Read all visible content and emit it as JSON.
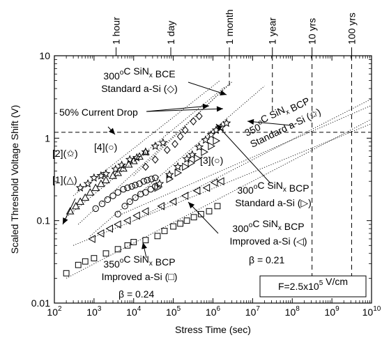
{
  "chart_data": {
    "type": "scatter",
    "xscale": "log",
    "yscale": "log",
    "xlim": [
      100,
      10000000000
    ],
    "ylim": [
      0.01,
      10
    ],
    "xlabel": "Stress Time (sec)",
    "ylabel": "Scaled Threshold Voltage Shift (V)",
    "grid": false,
    "x_ticks": [
      {
        "v": 100,
        "base": "10",
        "exp": "2"
      },
      {
        "v": 1000,
        "base": "10",
        "exp": "3"
      },
      {
        "v": 10000,
        "base": "10",
        "exp": "4"
      },
      {
        "v": 100000,
        "base": "10",
        "exp": "5"
      },
      {
        "v": 1000000,
        "base": "10",
        "exp": "6"
      },
      {
        "v": 10000000,
        "base": "10",
        "exp": "7"
      },
      {
        "v": 100000000,
        "base": "10",
        "exp": "8"
      },
      {
        "v": 1000000000,
        "base": "10",
        "exp": "9"
      },
      {
        "v": 10000000000,
        "base": "10",
        "exp": "10"
      }
    ],
    "y_ticks": [
      {
        "v": 0.01,
        "label": "0.01"
      },
      {
        "v": 0.1,
        "label": "0.1"
      },
      {
        "v": 1,
        "label": "1"
      },
      {
        "v": 10,
        "label": "10"
      }
    ],
    "time_markers": [
      {
        "label": "1 hour",
        "x": 3600,
        "line": false
      },
      {
        "label": "1 day",
        "x": 86400,
        "line": false
      },
      {
        "label": "1 month",
        "x": 2592000,
        "line": true,
        "ymin": 4
      },
      {
        "label": "1 year",
        "x": 31536000,
        "line": true,
        "ymin": 2
      },
      {
        "label": "10 yrs",
        "x": 315360000,
        "line": true,
        "ymin": 0.012
      },
      {
        "label": "100 yrs",
        "x": 3153600000,
        "line": true,
        "ymin": 0.012
      }
    ],
    "reference_line": {
      "label": "50% Current Drop",
      "y": 1.18
    },
    "series": [
      {
        "id": "1",
        "marker": "triangle-up",
        "points": [
          [
            250,
            0.13
          ],
          [
            350,
            0.15
          ],
          [
            450,
            0.17
          ],
          [
            600,
            0.19
          ],
          [
            800,
            0.22
          ],
          [
            1100,
            0.25
          ],
          [
            1500,
            0.28
          ],
          [
            2000,
            0.31
          ],
          [
            3000,
            0.35
          ],
          [
            4000,
            0.38
          ],
          [
            5500,
            0.43
          ],
          [
            7500,
            0.48
          ],
          [
            10000,
            0.53
          ],
          [
            14000,
            0.6
          ],
          [
            20000,
            0.68
          ]
        ],
        "fit": {
          "x0": 200,
          "y0": 0.11,
          "x1": 2000000,
          "y1": 4.2
        }
      },
      {
        "id": "2",
        "marker": "star",
        "points": [
          [
            450,
            0.25
          ],
          [
            700,
            0.28
          ],
          [
            1000,
            0.33
          ],
          [
            1500,
            0.35
          ],
          [
            2000,
            0.37
          ],
          [
            3500,
            0.42
          ],
          [
            5000,
            0.47
          ],
          [
            8000,
            0.55
          ],
          [
            12000,
            0.58
          ],
          [
            20000,
            0.68
          ],
          [
            35000,
            0.8
          ],
          [
            55000,
            0.88
          ]
        ],
        "fit": {
          "x0": 300,
          "y0": 0.2,
          "x1": 1500000,
          "y1": 5
        }
      },
      {
        "id": "4",
        "marker": "circle",
        "points": [
          [
            1100,
            0.14
          ],
          [
            1600,
            0.16
          ],
          [
            2200,
            0.18
          ],
          [
            3000,
            0.2
          ],
          [
            4000,
            0.22
          ],
          [
            5500,
            0.24
          ],
          [
            7000,
            0.25
          ],
          [
            9000,
            0.26
          ],
          [
            11000,
            0.27
          ],
          [
            14000,
            0.28
          ],
          [
            18000,
            0.3
          ],
          [
            22000,
            0.31
          ],
          [
            28000,
            0.32
          ],
          [
            35000,
            0.33
          ]
        ],
        "fit": {
          "x0": 400,
          "y0": 0.09,
          "x1": 3000000,
          "y1": 4.8
        }
      },
      {
        "id": "3",
        "marker": "circle",
        "points": [
          [
            4000,
            0.12
          ],
          [
            6000,
            0.15
          ],
          [
            8000,
            0.17
          ],
          [
            11000,
            0.19
          ],
          [
            15000,
            0.21
          ],
          [
            20000,
            0.22
          ],
          [
            27000,
            0.24
          ],
          [
            35000,
            0.26
          ]
        ],
        "fit": {
          "x0": 800,
          "y0": 0.065,
          "x1": 20000000,
          "y1": 4.3
        }
      },
      {
        "id": "BCE",
        "marker": "diamond",
        "points": [
          [
            20000,
            0.45
          ],
          [
            35000,
            0.55
          ],
          [
            70000,
            0.72
          ],
          [
            110000,
            0.85
          ],
          [
            150000,
            1.05
          ],
          [
            200000,
            1.25
          ],
          [
            320000,
            1.6
          ],
          [
            450000,
            1.85
          ]
        ],
        "fit": {
          "x0": 10000,
          "y0": 0.35,
          "x1": 2500000,
          "y1": 4.5
        }
      },
      {
        "id": "350 standard",
        "marker": "star",
        "points": [
          [
            45000,
            0.28
          ],
          [
            80000,
            0.36
          ],
          [
            130000,
            0.45
          ],
          [
            220000,
            0.56
          ],
          [
            300000,
            0.63
          ],
          [
            450000,
            0.78
          ],
          [
            650000,
            0.95
          ],
          [
            900000,
            1.1
          ],
          [
            1200000,
            1.25
          ],
          [
            1600000,
            1.35
          ],
          [
            2200000,
            1.52
          ]
        ],
        "fit": {
          "x0": 10000,
          "y0": 0.1,
          "x1": 10000000000,
          "y1": 3
        }
      },
      {
        "id": "300 standard",
        "marker": "triangle-right",
        "points": [
          [
            40000,
            0.25
          ],
          [
            80000,
            0.32
          ],
          [
            130000,
            0.38
          ],
          [
            200000,
            0.45
          ],
          [
            280000,
            0.5
          ],
          [
            400000,
            0.57
          ],
          [
            600000,
            0.68
          ],
          [
            900000,
            0.8
          ],
          [
            1200000,
            0.93
          ]
        ],
        "fit": {
          "x0": 5000,
          "y0": 0.12,
          "x1": 10000000000,
          "y1": 2.5
        }
      },
      {
        "id": "300 improved",
        "marker": "triangle-left",
        "points": [
          [
            900,
            0.06
          ],
          [
            1500,
            0.07
          ],
          [
            2500,
            0.08
          ],
          [
            4000,
            0.09
          ],
          [
            7000,
            0.1
          ],
          [
            12000,
            0.115
          ],
          [
            20000,
            0.13
          ],
          [
            50000,
            0.15
          ],
          [
            100000,
            0.17
          ],
          [
            200000,
            0.2
          ],
          [
            400000,
            0.23
          ],
          [
            700000,
            0.25
          ],
          [
            1100000,
            0.29
          ],
          [
            1600000,
            0.3
          ]
        ],
        "fit": {
          "x0": 300,
          "y0": 0.05,
          "x1": 10000000000,
          "y1": 1.5
        }
      },
      {
        "id": "350 improved",
        "marker": "square",
        "points": [
          [
            200,
            0.023
          ],
          [
            400,
            0.029
          ],
          [
            600,
            0.032
          ],
          [
            1000,
            0.035
          ],
          [
            2000,
            0.04
          ],
          [
            4000,
            0.045
          ],
          [
            7000,
            0.05
          ],
          [
            10000,
            0.055
          ],
          [
            20000,
            0.058
          ],
          [
            40000,
            0.065
          ],
          [
            60000,
            0.075
          ],
          [
            100000,
            0.085
          ],
          [
            150000,
            0.092
          ],
          [
            220000,
            0.1
          ],
          [
            330000,
            0.11
          ],
          [
            500000,
            0.12
          ],
          [
            800000,
            0.13
          ],
          [
            1300000,
            0.15
          ]
        ],
        "fit": {
          "x0": 200,
          "y0": 0.02,
          "x1": 10000000000,
          "y1": 1.7
        }
      }
    ],
    "annotations": [
      {
        "id": "bce",
        "lines": [
          [
            "300",
            "o",
            "C SiN",
            "x",
            " BCE"
          ],
          [
            "Standard a-Si (◇)"
          ]
        ]
      },
      {
        "id": "s350",
        "lines": [
          [
            "350",
            "o",
            "C SiN",
            "x",
            " BCP"
          ],
          [
            "Standard a-Si (✩)"
          ]
        ]
      },
      {
        "id": "s300",
        "lines": [
          [
            "300",
            "o",
            "C SiN",
            "x",
            " BCP"
          ],
          [
            "Standard a-Si (▷)"
          ]
        ]
      },
      {
        "id": "i300",
        "lines": [
          [
            "300",
            "o",
            "C SiN",
            "x",
            " BCP"
          ],
          [
            "Improved a-Si (◁)"
          ]
        ]
      },
      {
        "id": "i350",
        "lines": [
          [
            "350",
            "o",
            "C SiN",
            "x",
            " BCP"
          ],
          [
            "Improved a-Si (□)"
          ]
        ]
      },
      {
        "id": "b1",
        "text": "β = 0.21"
      },
      {
        "id": "b2",
        "text": "β = 0.24"
      },
      {
        "id": "l1",
        "text": "[1](△)"
      },
      {
        "id": "l2",
        "text": "[2](✩)"
      },
      {
        "id": "l3",
        "text": "[3](○)"
      },
      {
        "id": "l4",
        "text": "[4](○)"
      }
    ],
    "field_box": {
      "prefix": "F=2.5x10",
      "exp": "5",
      "suffix": " V/cm"
    }
  }
}
